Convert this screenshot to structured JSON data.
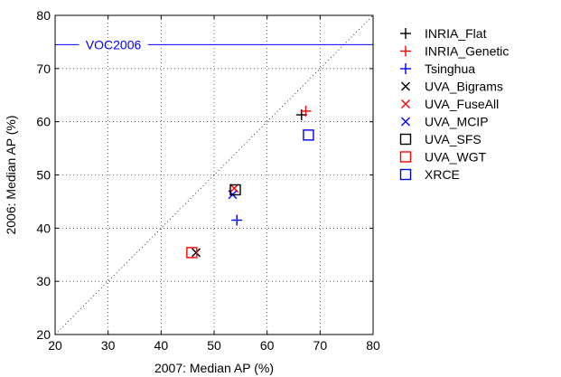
{
  "chart_data": {
    "type": "scatter",
    "xlabel": "2007: Median AP (%)",
    "ylabel": "2006: Median AP (%)",
    "xlim": [
      20,
      80
    ],
    "ylim": [
      20,
      80
    ],
    "xticks": [
      20,
      30,
      40,
      50,
      60,
      70,
      80
    ],
    "yticks": [
      20,
      30,
      40,
      50,
      60,
      70,
      80
    ],
    "grid": true,
    "diagonal": true,
    "legend_position": "outside-right",
    "reference_line": {
      "label": "VOC2006",
      "y": 74.5,
      "color": "#0000ff"
    },
    "series": [
      {
        "name": "INRIA_Flat",
        "marker": "plus",
        "color": "#000000",
        "points": [
          [
            66.5,
            61.3
          ]
        ]
      },
      {
        "name": "INRIA_Genetic",
        "marker": "plus",
        "color": "#ff0000",
        "points": [
          [
            67.3,
            62.0
          ]
        ]
      },
      {
        "name": "Tsinghua",
        "marker": "plus",
        "color": "#0000ff",
        "points": [
          [
            54.3,
            41.5
          ]
        ]
      },
      {
        "name": "UVA_Bigrams",
        "marker": "x",
        "color": "#000000",
        "points": [
          [
            46.6,
            35.4
          ]
        ]
      },
      {
        "name": "UVA_FuseAll",
        "marker": "x",
        "color": "#ff0000",
        "points": [
          [
            53.8,
            47.5
          ]
        ]
      },
      {
        "name": "UVA_MCIP",
        "marker": "x",
        "color": "#0000ff",
        "points": [
          [
            53.5,
            46.3
          ]
        ]
      },
      {
        "name": "UVA_SFS",
        "marker": "square",
        "color": "#000000",
        "points": [
          [
            54.0,
            47.2
          ]
        ]
      },
      {
        "name": "UVA_WGT",
        "marker": "square",
        "color": "#ff0000",
        "points": [
          [
            45.8,
            35.4
          ]
        ]
      },
      {
        "name": "XRCE",
        "marker": "square",
        "color": "#0000ff",
        "points": [
          [
            67.8,
            57.5
          ]
        ]
      }
    ]
  }
}
